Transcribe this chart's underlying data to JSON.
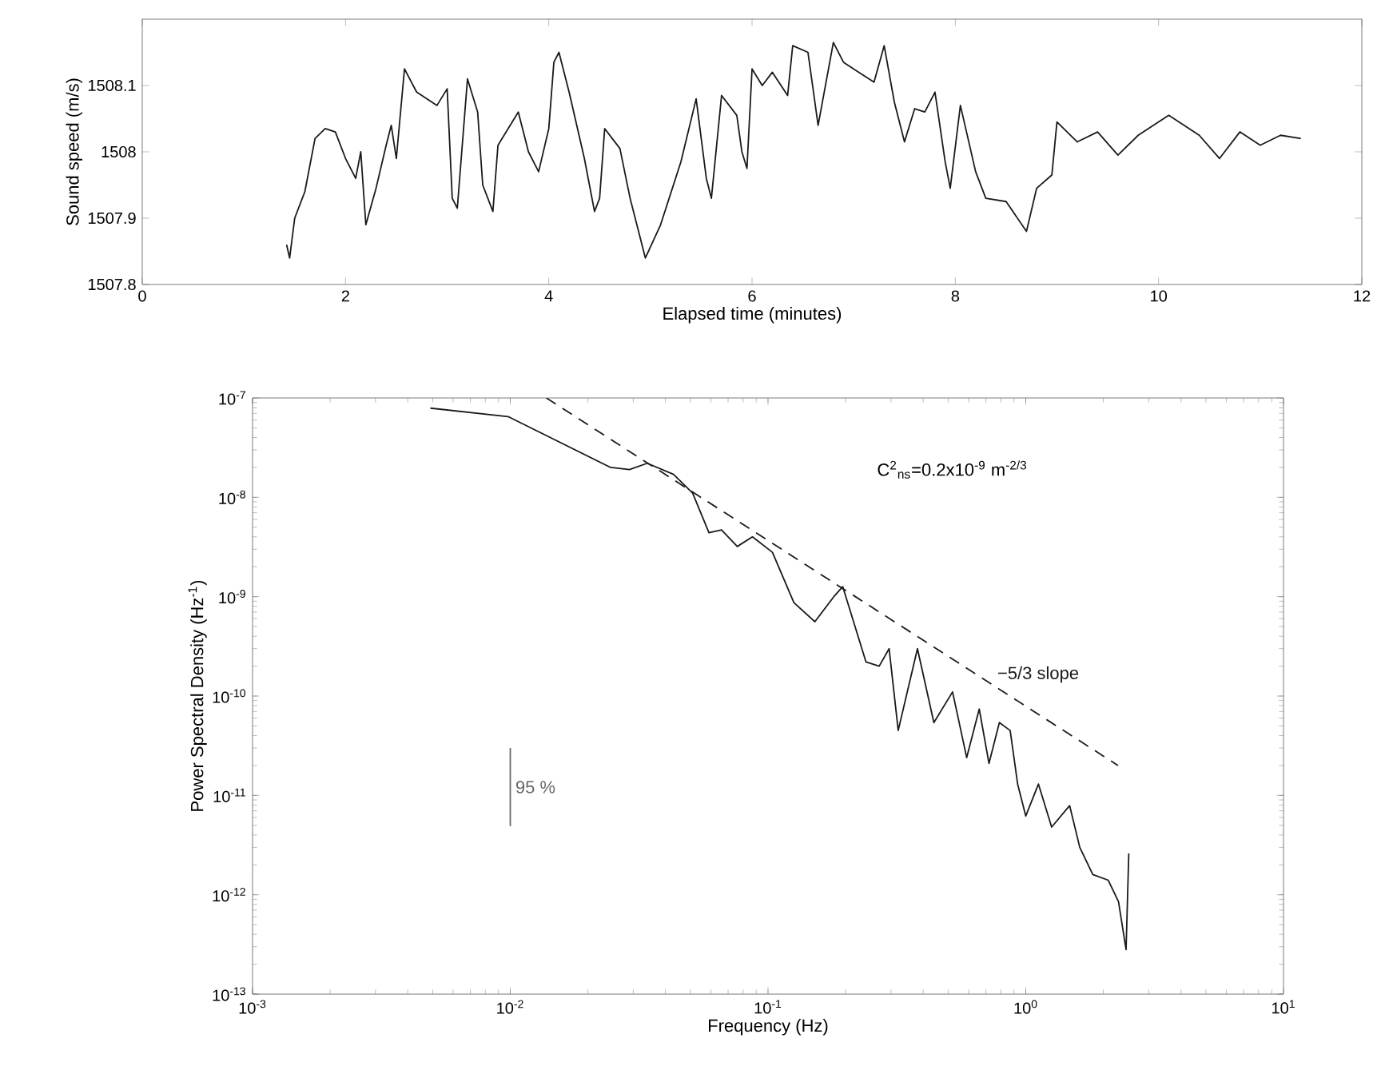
{
  "chart_data": [
    {
      "type": "line",
      "xlabel": "Elapsed time (minutes)",
      "ylabel": "Sound speed (m/s)",
      "xlim": [
        0,
        12
      ],
      "ylim": [
        1507.8,
        1508.2
      ],
      "xticks": [
        0,
        2,
        4,
        6,
        8,
        10,
        12
      ],
      "yticks": [
        1507.8,
        1507.9,
        1508,
        1508.1
      ],
      "series": [
        {
          "color": "#1a1a1a",
          "x": [
            1.42,
            1.45,
            1.5,
            1.6,
            1.7,
            1.8,
            1.9,
            2.0,
            2.1,
            2.15,
            2.2,
            2.3,
            2.4,
            2.45,
            2.5,
            2.58,
            2.7,
            2.9,
            3.0,
            3.05,
            3.1,
            3.2,
            3.3,
            3.35,
            3.45,
            3.5,
            3.7,
            3.8,
            3.9,
            4.0,
            4.05,
            4.1,
            4.2,
            4.35,
            4.45,
            4.5,
            4.55,
            4.7,
            4.8,
            4.9,
            4.95,
            5.1,
            5.3,
            5.45,
            5.55,
            5.6,
            5.7,
            5.85,
            5.9,
            5.95,
            6.0,
            6.1,
            6.2,
            6.35,
            6.4,
            6.55,
            6.65,
            6.8,
            6.9,
            7.05,
            7.2,
            7.3,
            7.4,
            7.5,
            7.6,
            7.7,
            7.8,
            7.9,
            7.95,
            8.05,
            8.2,
            8.3,
            8.5,
            8.7,
            8.8,
            8.95,
            9.0,
            9.2,
            9.4,
            9.6,
            9.8,
            10.1,
            10.4,
            10.6,
            10.8,
            11.0,
            11.2,
            11.4
          ],
          "values": [
            1507.86,
            1507.84,
            1507.9,
            1507.94,
            1508.02,
            1508.035,
            1508.03,
            1507.99,
            1507.96,
            1508.0,
            1507.89,
            1507.945,
            1508.01,
            1508.04,
            1507.99,
            1508.125,
            1508.09,
            1508.07,
            1508.095,
            1507.93,
            1507.915,
            1508.11,
            1508.06,
            1507.95,
            1507.91,
            1508.01,
            1508.06,
            1508.0,
            1507.97,
            1508.035,
            1508.135,
            1508.15,
            1508.09,
            1507.99,
            1507.91,
            1507.93,
            1508.035,
            1508.005,
            1507.93,
            1507.87,
            1507.84,
            1507.89,
            1507.985,
            1508.08,
            1507.96,
            1507.93,
            1508.085,
            1508.055,
            1508.0,
            1507.975,
            1508.125,
            1508.1,
            1508.12,
            1508.085,
            1508.16,
            1508.15,
            1508.04,
            1508.165,
            1508.135,
            1508.12,
            1508.105,
            1508.16,
            1508.075,
            1508.015,
            1508.065,
            1508.06,
            1508.09,
            1507.985,
            1507.945,
            1508.07,
            1507.97,
            1507.93,
            1507.925,
            1507.88,
            1507.945,
            1507.965,
            1508.045,
            1508.015,
            1508.03,
            1507.995,
            1508.025,
            1508.055,
            1508.025,
            1507.99,
            1508.03,
            1508.01,
            1508.025,
            1508.02
          ]
        }
      ]
    },
    {
      "type": "line",
      "xlabel": "Frequency (Hz)",
      "ylabel": "Power Spectral Density (Hz$^{-1}$)",
      "log": "xy",
      "xlim": [
        0.001,
        10
      ],
      "ylim": [
        1e-13,
        1e-07
      ],
      "xticks": [
        {
          "value": 0.001,
          "label": "10$^{-3}$"
        },
        {
          "value": 0.01,
          "label": "10$^{-2}$"
        },
        {
          "value": 0.1,
          "label": "10$^{-1}$"
        },
        {
          "value": 1,
          "label": "10$^{0}$"
        },
        {
          "value": 10,
          "label": "10$^{1}$"
        }
      ],
      "yticks": [
        {
          "value": 1e-13,
          "label": "10$^{-13}$"
        },
        {
          "value": 1e-12,
          "label": "10$^{-12}$"
        },
        {
          "value": 1e-11,
          "label": "10$^{-11}$"
        },
        {
          "value": 1e-10,
          "label": "10$^{-10}$"
        },
        {
          "value": 1e-09,
          "label": "10$^{-9}$"
        },
        {
          "value": 1e-08,
          "label": "10$^{-8}$"
        },
        {
          "value": 1e-07,
          "label": "10$^{-7}$"
        }
      ],
      "annotations": [
        "C$^{2}$$_{ns}$=0.2x10$^{-9}$ m$^{-2/3}$"
      ],
      "series": [
        {
          "color": "#1a1a1a",
          "x": [
            0.0049,
            0.0098,
            0.0245,
            0.029,
            0.034,
            0.043,
            0.051,
            0.059,
            0.066,
            0.076,
            0.087,
            0.104,
            0.126,
            0.152,
            0.18,
            0.195,
            0.24,
            0.27,
            0.295,
            0.32,
            0.38,
            0.44,
            0.52,
            0.59,
            0.66,
            0.72,
            0.79,
            0.87,
            0.93,
            1.0,
            1.12,
            1.26,
            1.48,
            1.62,
            1.82,
            2.09,
            2.29,
            2.45,
            2.51
          ],
          "values": [
            7.9e-08,
            6.5e-08,
            2e-08,
            1.9e-08,
            2.2e-08,
            1.7e-08,
            1.1e-08,
            4.4e-09,
            4.7e-09,
            3.2e-09,
            4e-09,
            2.8e-09,
            8.7e-10,
            5.6e-10,
            1e-09,
            1.26e-09,
            2.2e-10,
            2e-10,
            3e-10,
            4.5e-11,
            3e-10,
            5.4e-11,
            1.1e-10,
            2.4e-11,
            7.4e-11,
            2.1e-11,
            5.4e-11,
            4.5e-11,
            1.3e-11,
            6.2e-12,
            1.3e-11,
            4.8e-12,
            7.9e-12,
            3e-12,
            1.6e-12,
            1.4e-12,
            8.5e-13,
            2.8e-13,
            2.6e-12
          ]
        },
        {
          "name": "−5/3 slope",
          "color": "#1a1a1a",
          "line_style": "dashed",
          "x": [
            0.0138,
            2.28
          ],
          "values": [
            1e-07,
            2e-11
          ]
        },
        {
          "name": "95 %",
          "color": "#666666",
          "x": [
            0.01,
            0.01
          ],
          "values": [
            3e-11,
            4.9e-12
          ]
        }
      ]
    }
  ]
}
